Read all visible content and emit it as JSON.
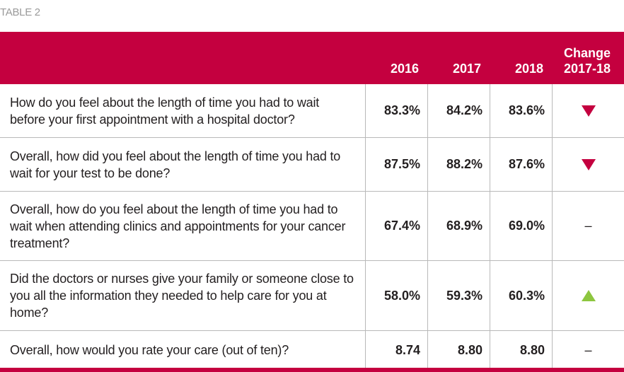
{
  "caption": "TABLE 2",
  "header": {
    "year1": "2016",
    "year2": "2017",
    "year3": "2018",
    "change_line1": "Change",
    "change_line2": "2017-18"
  },
  "rows": [
    {
      "question": "How do you feel about the length of time you had to wait before your first appointment with a hospital doctor?",
      "v2016": "83.3%",
      "v2017": "84.2%",
      "v2018": "83.6%",
      "change": "down-triangle-icon"
    },
    {
      "question": "Overall, how did you feel about the length of time you had to wait for your test to be done?",
      "v2016": "87.5%",
      "v2017": "88.2%",
      "v2018": "87.6%",
      "change": "down-triangle-icon"
    },
    {
      "question": "Overall, how do you feel about the length of time you had to wait when attending clinics and appointments for your cancer treatment?",
      "v2016": "67.4%",
      "v2017": "68.9%",
      "v2018": "69.0%",
      "change": "–"
    },
    {
      "question": "Did the doctors or nurses give your family or someone close to you all the information they needed to help care for you at home?",
      "v2016": "58.0%",
      "v2017": "59.3%",
      "v2018": "60.3%",
      "change": "up-triangle-icon"
    },
    {
      "question": "Overall, how would you rate your care (out of ten)?",
      "v2016": "8.74",
      "v2017": "8.80",
      "v2018": "8.80",
      "change": "–"
    }
  ],
  "colors": {
    "header_bg": "#c4003f",
    "down_marker": "#c4003f",
    "up_marker": "#8dc63f"
  }
}
